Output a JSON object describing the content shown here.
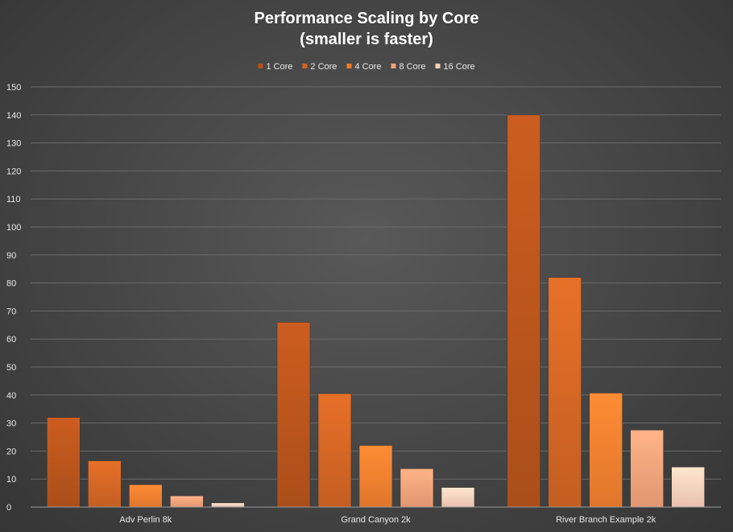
{
  "chart_data": {
    "type": "bar",
    "title": "Performance Scaling by Core",
    "subtitle": "(smaller is faster)",
    "categories": [
      "Adv Perlin 8k",
      "Grand Canyon 2k",
      "River Branch Example 2k"
    ],
    "series": [
      {
        "name": "1 Core",
        "values": [
          32,
          66,
          140
        ],
        "color": "#b6531c"
      },
      {
        "name": "2 Core",
        "values": [
          16.5,
          40.5,
          82
        ],
        "color": "#cf6424"
      },
      {
        "name": "4 Core",
        "values": [
          8,
          22,
          40.7
        ],
        "color": "#ee7d2e"
      },
      {
        "name": "8 Core",
        "values": [
          4,
          13.7,
          27.5
        ],
        "color": "#f0a078"
      },
      {
        "name": "16 Core",
        "values": [
          1.5,
          7,
          14.3
        ],
        "color": "#f7cdb9"
      }
    ],
    "ylim": [
      0,
      150
    ],
    "yticks": [
      0,
      10,
      20,
      30,
      40,
      50,
      60,
      70,
      80,
      90,
      100,
      110,
      120,
      130,
      140,
      150
    ],
    "grid": true,
    "legend_position": "top"
  }
}
